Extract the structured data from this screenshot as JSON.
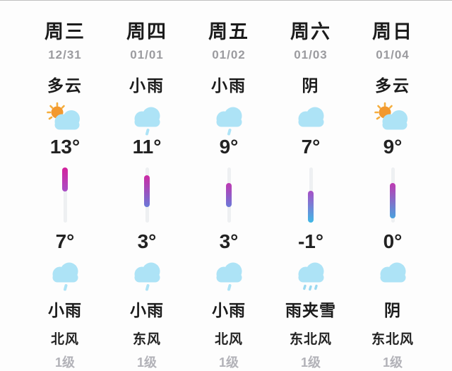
{
  "widget": {
    "name": "5-day-weather-forecast",
    "temperature_scale": {
      "track_top_deg": 13,
      "track_bottom_deg": -1
    },
    "colors": {
      "background": "#fdfdfd",
      "cloud_blue": "#ade3f6",
      "sun_orange": "#f2992e",
      "bar_track_gray": "#eef0f2",
      "date_gray": "#9b9b9f",
      "wind_level_gray": "#b2b2b8",
      "text_black": "#1b1b1b"
    }
  },
  "columns": [
    {
      "day": "周三",
      "date": "12/31",
      "day_condition": "多云",
      "day_icon": "sun-cloud-icon",
      "high": "13°",
      "low": "7°",
      "night_icon": "cloud-rain-icon",
      "night_condition": "小雨",
      "wind_direction": "北风",
      "wind_level": "1级",
      "bar": {
        "top_pct": 0,
        "height_pct": 43,
        "color_top": "#d4219c",
        "color_bottom": "#a84fc6"
      }
    },
    {
      "day": "周四",
      "date": "01/01",
      "day_condition": "小雨",
      "day_icon": "cloud-rain-icon",
      "high": "11°",
      "low": "3°",
      "night_icon": "cloud-rain-icon",
      "night_condition": "小雨",
      "wind_direction": "东风",
      "wind_level": "1级",
      "bar": {
        "top_pct": 14.3,
        "height_pct": 57.1,
        "color_top": "#cd2aa4",
        "color_bottom": "#6b79d8"
      }
    },
    {
      "day": "周五",
      "date": "01/02",
      "day_condition": "小雨",
      "day_icon": "cloud-rain-icon",
      "high": "9°",
      "low": "3°",
      "night_icon": "cloud-rain-icon",
      "night_condition": "小雨",
      "wind_direction": "北风",
      "wind_level": "1级",
      "bar": {
        "top_pct": 28.6,
        "height_pct": 42.9,
        "color_top": "#bf39b2",
        "color_bottom": "#6b79d8"
      }
    },
    {
      "day": "周六",
      "date": "01/03",
      "day_condition": "阴",
      "day_icon": "cloud-icon",
      "high": "7°",
      "low": "-1°",
      "night_icon": "cloud-sleet-icon",
      "night_condition": "雨夹雪",
      "wind_direction": "东北风",
      "wind_level": "1级",
      "bar": {
        "top_pct": 42.9,
        "height_pct": 57.1,
        "color_top": "#a84fc6",
        "color_bottom": "#3fb9e6"
      }
    },
    {
      "day": "周日",
      "date": "01/04",
      "day_condition": "多云",
      "day_icon": "sun-cloud-icon",
      "high": "9°",
      "low": "0°",
      "night_icon": "cloud-icon",
      "night_condition": "阴",
      "wind_direction": "东北风",
      "wind_level": "1级",
      "bar": {
        "top_pct": 28.6,
        "height_pct": 64.3,
        "color_top": "#bf39b2",
        "color_bottom": "#4aa2de"
      }
    }
  ]
}
